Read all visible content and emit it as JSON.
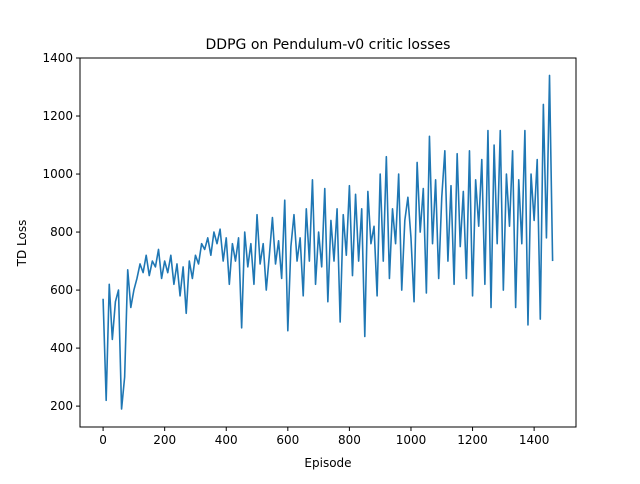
{
  "chart_data": {
    "type": "line",
    "title": "DDPG on Pendulum-v0 critic losses",
    "x_label": "Episode",
    "y_label": "TD Loss",
    "x": [
      0,
      10,
      20,
      30,
      40,
      50,
      60,
      70,
      80,
      90,
      100,
      110,
      120,
      130,
      140,
      150,
      160,
      170,
      180,
      190,
      200,
      210,
      220,
      230,
      240,
      250,
      260,
      270,
      280,
      290,
      300,
      310,
      320,
      330,
      340,
      350,
      360,
      370,
      380,
      390,
      400,
      410,
      420,
      430,
      440,
      450,
      460,
      470,
      480,
      490,
      500,
      510,
      520,
      530,
      540,
      550,
      560,
      570,
      580,
      590,
      600,
      610,
      620,
      630,
      640,
      650,
      660,
      670,
      680,
      690,
      700,
      710,
      720,
      730,
      740,
      750,
      760,
      770,
      780,
      790,
      800,
      810,
      820,
      830,
      840,
      850,
      860,
      870,
      880,
      890,
      900,
      910,
      920,
      930,
      940,
      950,
      960,
      970,
      980,
      990,
      1000,
      1010,
      1020,
      1030,
      1040,
      1050,
      1060,
      1070,
      1080,
      1090,
      1100,
      1110,
      1120,
      1130,
      1140,
      1150,
      1160,
      1170,
      1180,
      1190,
      1200,
      1210,
      1220,
      1230,
      1240,
      1250,
      1260,
      1270,
      1280,
      1290,
      1300,
      1310,
      1320,
      1330,
      1340,
      1350,
      1360,
      1370,
      1380,
      1390,
      1400,
      1410,
      1420,
      1430,
      1440,
      1450,
      1460
    ],
    "series": [
      {
        "name": "TD Loss",
        "color": "#1f77b4",
        "values": [
          570,
          220,
          620,
          430,
          560,
          600,
          190,
          300,
          670,
          540,
          600,
          640,
          690,
          660,
          720,
          650,
          700,
          680,
          740,
          640,
          700,
          660,
          720,
          620,
          690,
          580,
          680,
          520,
          700,
          640,
          720,
          690,
          760,
          740,
          780,
          720,
          800,
          760,
          810,
          700,
          780,
          620,
          760,
          700,
          780,
          470,
          800,
          680,
          760,
          620,
          860,
          690,
          760,
          600,
          720,
          850,
          690,
          770,
          640,
          910,
          460,
          750,
          860,
          700,
          780,
          580,
          880,
          700,
          980,
          620,
          800,
          680,
          950,
          560,
          840,
          700,
          880,
          490,
          860,
          720,
          960,
          650,
          930,
          700,
          880,
          440,
          940,
          760,
          820,
          580,
          1000,
          700,
          1060,
          640,
          880,
          760,
          1000,
          600,
          840,
          920,
          780,
          560,
          1040,
          800,
          950,
          590,
          1130,
          760,
          980,
          640,
          920,
          1080,
          700,
          960,
          620,
          1070,
          750,
          940,
          640,
          1080,
          580,
          980,
          820,
          1050,
          620,
          1150,
          540,
          1100,
          760,
          1150,
          600,
          1000,
          820,
          1080,
          540,
          980,
          760,
          1150,
          480,
          1000,
          840,
          1050,
          500,
          1240,
          780,
          1340,
          700
        ]
      }
    ],
    "xlim": [
      -75,
      1536
    ],
    "ylim": [
      128,
      1400
    ],
    "xticks": [
      0,
      200,
      400,
      600,
      800,
      1000,
      1200,
      1400
    ],
    "yticks": [
      200,
      400,
      600,
      800,
      1000,
      1200,
      1400
    ]
  }
}
